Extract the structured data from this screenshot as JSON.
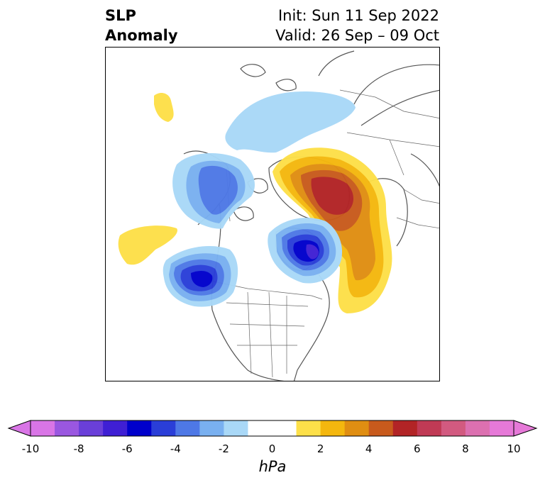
{
  "title": {
    "line1_left": "SLP",
    "line2_left": "Anomaly",
    "line1_right": "Init: Sun 11 Sep 2022",
    "line2_right": "Valid: 26 Sep – 09 Oct"
  },
  "map": {
    "projection": "north-polar-stereographic",
    "region": "North America / Arctic / North Pacific",
    "anomaly_centers": [
      {
        "sign": "negative",
        "max_hpa": -7,
        "location": "Gulf of Alaska"
      },
      {
        "sign": "negative",
        "max_hpa": -7,
        "location": "Hudson Bay"
      },
      {
        "sign": "negative",
        "max_hpa": -4,
        "location": "Bering Sea / Aleutians"
      },
      {
        "sign": "positive",
        "max_hpa": 6,
        "location": "Greenland Sea / Scandinavia"
      },
      {
        "sign": "positive",
        "max_hpa": 4,
        "location": "North Atlantic"
      },
      {
        "sign": "positive",
        "max_hpa": 1,
        "location": "Central North Pacific"
      }
    ]
  },
  "colorbar": {
    "unit": "hPa",
    "extend": "both",
    "ticks": [
      "-10",
      "-8",
      "-6",
      "-4",
      "-2",
      "0",
      "2",
      "4",
      "6",
      "8",
      "10"
    ],
    "levels": [
      -10,
      -9,
      -8,
      -7,
      -6,
      -5,
      -4,
      -3,
      -2,
      -1,
      1,
      2,
      3,
      4,
      5,
      6,
      7,
      8,
      9,
      10
    ],
    "colors": [
      "#d975e6",
      "#9a57e0",
      "#6a3fd9",
      "#3f1fd4",
      "#0000cc",
      "#2a3ed8",
      "#4e78e6",
      "#79b0f0",
      "#a9d8f7",
      "#ffffff",
      "#fde049",
      "#f4b70e",
      "#e08e12",
      "#c85a1c",
      "#b22426",
      "#c03a55",
      "#d25a80",
      "#dc70b0",
      "#e679d8",
      "#e679d8"
    ]
  }
}
